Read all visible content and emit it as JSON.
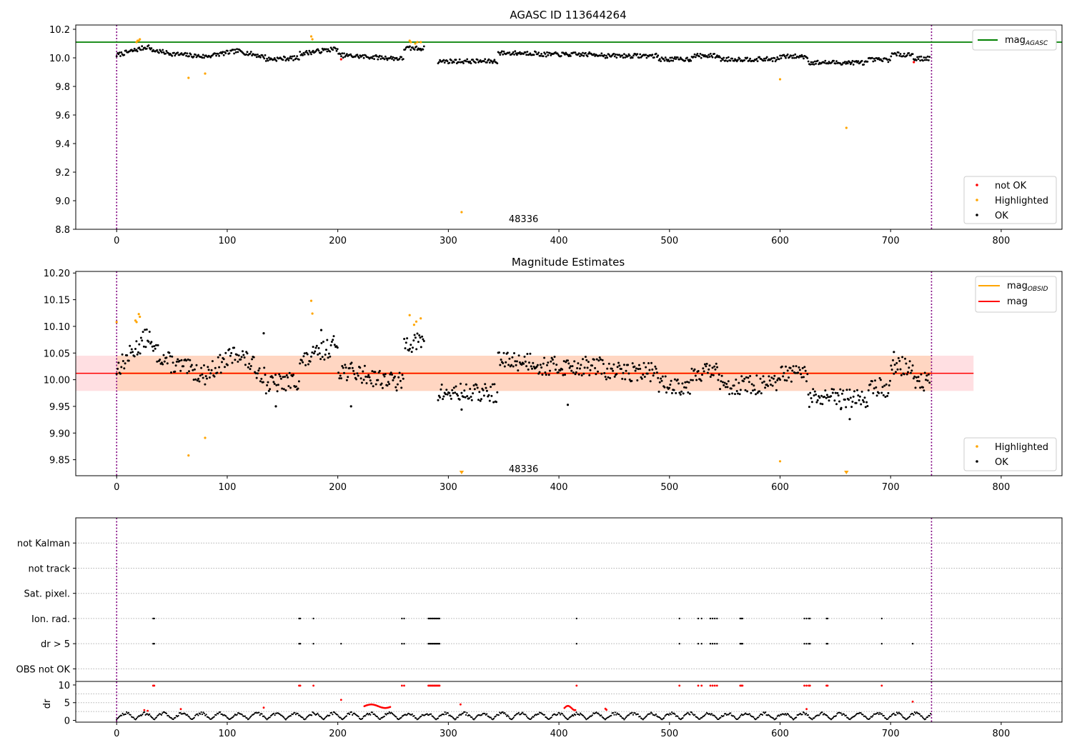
{
  "chart_data": [
    {
      "type": "scatter",
      "title": "AGASC ID 113644264",
      "xlim": [
        -37,
        855
      ],
      "ylim": [
        8.8,
        10.23
      ],
      "xticks": [
        0,
        100,
        200,
        300,
        400,
        500,
        600,
        700,
        800
      ],
      "yticks": [
        8.8,
        9.0,
        9.2,
        9.4,
        9.6,
        9.8,
        10.0,
        10.2
      ],
      "ytick_decimals": 1,
      "vlines": [
        0,
        737
      ],
      "hline": {
        "name": "mag_AGASC",
        "label": "mag",
        "label_sub": "AGASC",
        "y": 10.11,
        "x_range": [
          -37,
          855
        ],
        "color": "#008000"
      },
      "annotation": {
        "text": "48336",
        "x": 368,
        "y": 8.87
      },
      "legend_lines": [
        {
          "label": "mag",
          "label_sub": "AGASC",
          "color": "#008000"
        }
      ],
      "legend_points": [
        {
          "label": "not OK",
          "color": "#ff0000"
        },
        {
          "label": "Highlighted",
          "color": "#ffa500"
        },
        {
          "label": "OK",
          "color": "#000000"
        }
      ],
      "series": [
        {
          "name": "not OK",
          "color": "#ff0000",
          "points": [
            [
              203,
              9.99
            ],
            [
              721,
              9.97
            ]
          ]
        },
        {
          "name": "Highlighted",
          "color": "#ffa500",
          "points": [
            [
              18,
              10.11
            ],
            [
              19,
              10.12
            ],
            [
              20,
              10.12
            ],
            [
              21,
              10.13
            ],
            [
              65,
              9.86
            ],
            [
              80,
              9.89
            ],
            [
              176,
              10.15
            ],
            [
              177,
              10.13
            ],
            [
              265,
              10.12
            ],
            [
              266,
              10.11
            ],
            [
              270,
              10.1
            ],
            [
              272,
              10.11
            ],
            [
              275,
              10.11
            ],
            [
              312,
              8.92
            ],
            [
              600,
              9.85
            ],
            [
              660,
              9.51
            ]
          ]
        }
      ]
    },
    {
      "type": "scatter",
      "title": "Magnitude Estimates",
      "xlim": [
        -37,
        855
      ],
      "ylim": [
        9.82,
        10.203
      ],
      "xticks": [
        0,
        100,
        200,
        300,
        400,
        500,
        600,
        700,
        800
      ],
      "yticks": [
        9.85,
        9.9,
        9.95,
        10.0,
        10.05,
        10.1,
        10.15,
        10.2
      ],
      "ytick_decimals": 2,
      "vlines": [
        0,
        737
      ],
      "mag_line": {
        "name": "mag",
        "y": 10.012,
        "x_range": [
          -37,
          775
        ],
        "color": "#ff0000"
      },
      "obsid_line": {
        "name": "mag_OBSID",
        "y": 10.012,
        "x_range": [
          0,
          737
        ],
        "color": "#ffa500"
      },
      "band_outer": {
        "y_range": [
          9.979,
          10.045
        ],
        "x_range": [
          -37,
          775
        ],
        "color": "#ffdfe2"
      },
      "band_inner": {
        "y_range": [
          9.979,
          10.045
        ],
        "x_range": [
          0,
          737
        ],
        "color": "#ffd6c2"
      },
      "annotation": {
        "text": "48336",
        "x": 368,
        "y": 9.832
      },
      "legend_lines": [
        {
          "label": "mag",
          "label_sub": "OBSID",
          "color": "#ffa500"
        },
        {
          "label": "mag",
          "label_sub": "",
          "color": "#ff0000"
        }
      ],
      "legend_points": [
        {
          "label": "Highlighted",
          "color": "#ffa500"
        },
        {
          "label": "OK",
          "color": "#000000"
        }
      ],
      "series": [
        {
          "name": "Highlighted",
          "color": "#ffa500",
          "points": [
            [
              0,
              10.108
            ],
            [
              17,
              10.111
            ],
            [
              18,
              10.108
            ],
            [
              20,
              10.123
            ],
            [
              21,
              10.118
            ],
            [
              65,
              9.858
            ],
            [
              80,
              9.891
            ],
            [
              176,
              10.148
            ],
            [
              177,
              10.124
            ],
            [
              265,
              10.121
            ],
            [
              269,
              10.103
            ],
            [
              271,
              10.109
            ],
            [
              275,
              10.115
            ],
            [
              600,
              9.847
            ]
          ]
        },
        {
          "name": "Highlighted (clipped)",
          "color": "#ffa500",
          "marker": "triangle-down",
          "points": [
            [
              312,
              9.826
            ],
            [
              660,
              9.826
            ]
          ]
        },
        {
          "name": "OK (extremes)",
          "color": "#000000",
          "points": [
            [
              133,
              10.087
            ],
            [
              144,
              9.95
            ],
            [
              185,
              10.093
            ],
            [
              212,
              9.95
            ],
            [
              312,
              9.944
            ],
            [
              408,
              9.953
            ],
            [
              655,
              9.945
            ],
            [
              663,
              9.926
            ],
            [
              703,
              10.052
            ]
          ]
        }
      ]
    },
    {
      "type": "scatter",
      "title": "",
      "xlim": [
        -37,
        855
      ],
      "flags_ylim": [
        -0.5,
        6.0
      ],
      "dr_ylim": [
        -0.5,
        11.0
      ],
      "xticks": [
        0,
        100,
        200,
        300,
        400,
        500,
        600,
        700,
        800
      ],
      "vlines": [
        0,
        737
      ],
      "flag_labels": [
        "not Kalman",
        "not track",
        "Sat. pixel.",
        "Ion. rad.",
        "dr > 5",
        "OBS not OK"
      ],
      "dr_yticks": [
        0,
        5,
        10
      ],
      "dr_ylabel": "dr",
      "flag_points": {
        "Ion. rad.": [
          33,
          34,
          165,
          166,
          178,
          258,
          260,
          282,
          283,
          284,
          285,
          286,
          287,
          288,
          289,
          290,
          291,
          292,
          416,
          509,
          526,
          529,
          537,
          539,
          541,
          543,
          564,
          565,
          566,
          622,
          624,
          626,
          627,
          642,
          643,
          692
        ],
        "dr > 5": [
          33,
          34,
          165,
          166,
          178,
          203,
          258,
          260,
          282,
          283,
          284,
          285,
          286,
          287,
          288,
          289,
          290,
          291,
          292,
          416,
          509,
          526,
          529,
          537,
          539,
          541,
          543,
          564,
          565,
          566,
          622,
          624,
          626,
          627,
          642,
          643,
          692,
          720
        ]
      },
      "dr_red_high": [
        33,
        34,
        165,
        166,
        178,
        258,
        260,
        282,
        283,
        284,
        285,
        286,
        287,
        288,
        289,
        290,
        291,
        292,
        416,
        509,
        526,
        529,
        537,
        539,
        541,
        543,
        564,
        565,
        566,
        622,
        624,
        626,
        627,
        642,
        643,
        692
      ],
      "dr_red_points": [
        [
          203,
          5.8
        ],
        [
          720,
          5.3
        ],
        [
          311,
          4.5
        ],
        [
          133,
          3.6
        ],
        [
          58,
          3.2
        ],
        [
          25,
          2.9
        ],
        [
          28,
          2.7
        ],
        [
          442,
          3.3
        ],
        [
          443,
          3.0
        ],
        [
          624,
          3.2
        ]
      ]
    }
  ]
}
